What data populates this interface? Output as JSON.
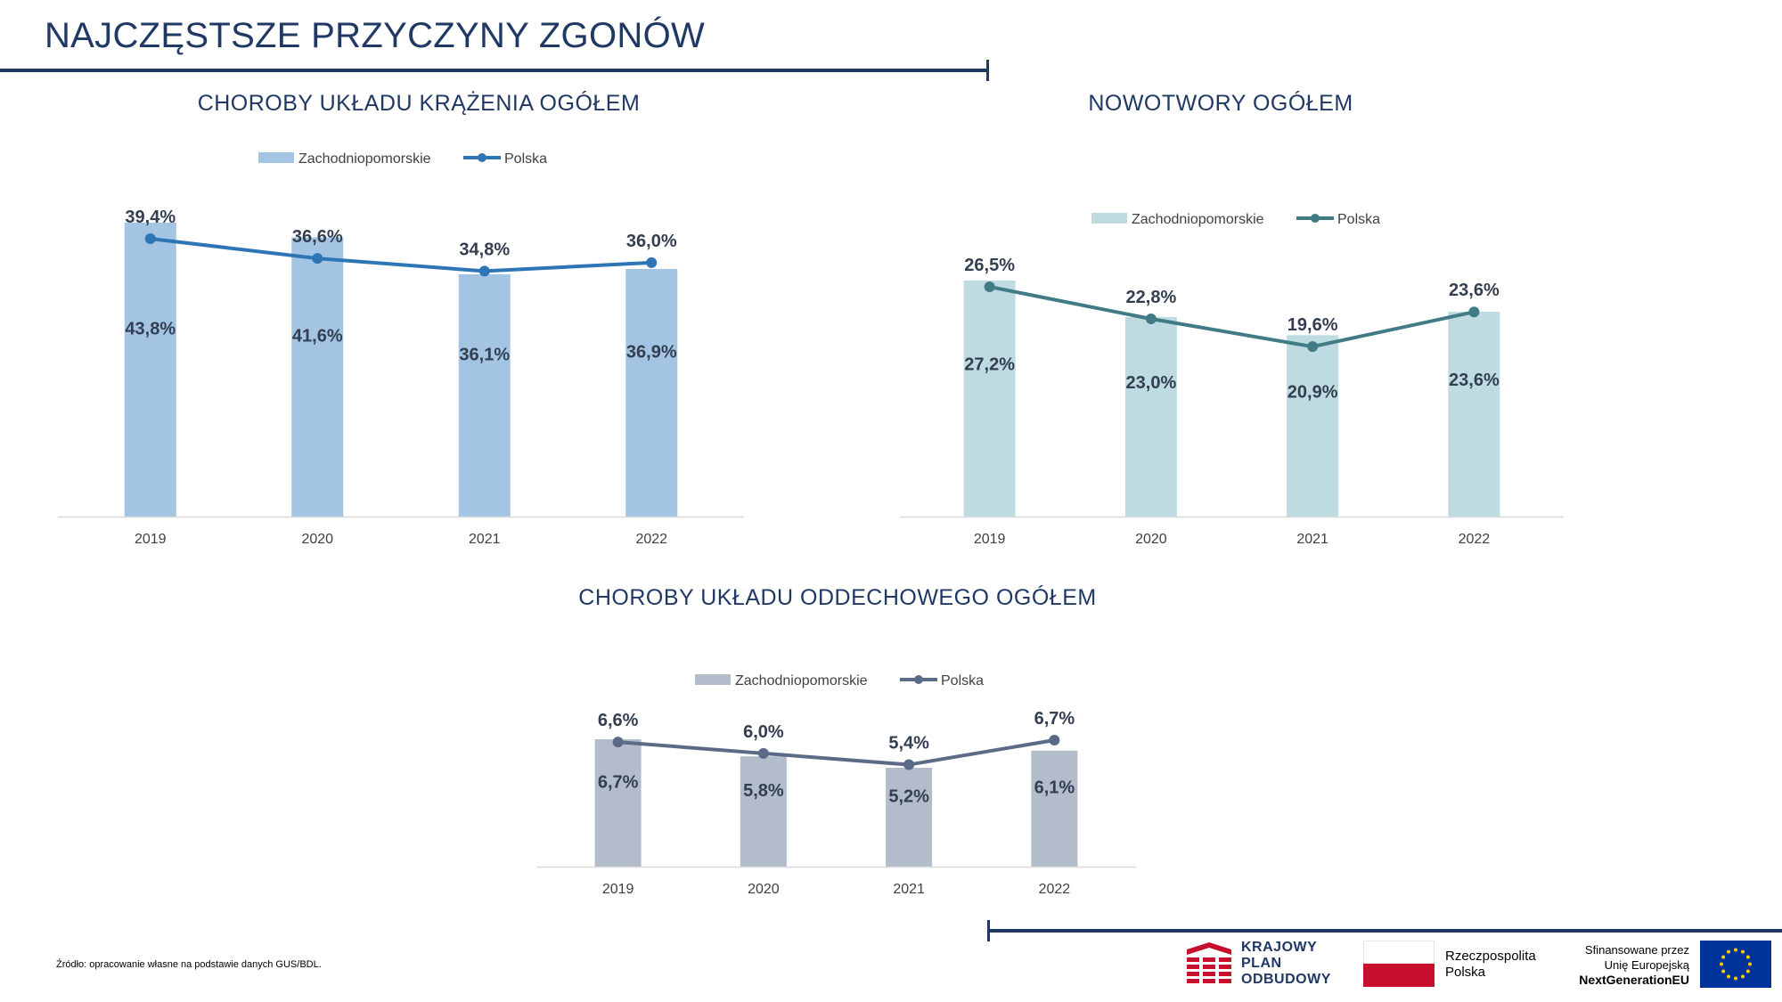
{
  "page": {
    "title": "NAJCZĘSTSZE PRZYCZYNY ZGONÓW",
    "source": "Źródło: opracowanie własne na podstawie danych GUS/BDL."
  },
  "logos": {
    "kpo": [
      "KRAJOWY",
      "PLAN",
      "ODBUDOWY"
    ],
    "rp": [
      "Rzeczpospolita",
      "Polska"
    ],
    "eu": [
      "Sfinansowane przez",
      "Unię Europejską",
      "NextGenerationEU"
    ]
  },
  "colors": {
    "title": "#1f3864",
    "rule": "#1f3864",
    "chart1_bar": "#a3c4e3",
    "chart1_line": "#2e75b6",
    "chart2_bar": "#bddbe0",
    "chart2_line": "#417b85",
    "chart3_bar": "#b3bccb",
    "chart3_line": "#5b6b87",
    "label": "#333f50",
    "axis_label": "#404040"
  },
  "chart_data": [
    {
      "id": "circulatory",
      "type": "bar",
      "title": "CHOROBY UKŁADU KRĄŻENIA OGÓŁEM",
      "categories": [
        "2019",
        "2020",
        "2021",
        "2022"
      ],
      "series": [
        {
          "name": "Zachodniopomorskie",
          "type": "bar",
          "values": [
            43.8,
            41.6,
            36.1,
            36.9
          ],
          "labels": [
            "43,8%",
            "41,6%",
            "36,1%",
            "36,9%"
          ]
        },
        {
          "name": "Polska",
          "type": "line",
          "values": [
            39.4,
            36.6,
            34.8,
            36.0
          ],
          "labels": [
            "39,4%",
            "36,6%",
            "34,8%",
            "36,0%"
          ]
        }
      ],
      "legend": "top"
    },
    {
      "id": "cancer",
      "type": "bar",
      "title": "NOWOTWORY OGÓŁEM",
      "categories": [
        "2019",
        "2020",
        "2021",
        "2022"
      ],
      "series": [
        {
          "name": "Zachodniopomorskie",
          "type": "bar",
          "values": [
            27.2,
            23.0,
            20.9,
            23.6
          ],
          "labels": [
            "27,2%",
            "23,0%",
            "20,9%",
            "23,6%"
          ]
        },
        {
          "name": "Polska",
          "type": "line",
          "values": [
            26.5,
            22.8,
            19.6,
            23.6
          ],
          "labels": [
            "26,5%",
            "22,8%",
            "19,6%",
            "23,6%"
          ]
        }
      ],
      "legend": "top"
    },
    {
      "id": "respiratory",
      "type": "bar",
      "title": "CHOROBY UKŁADU ODDECHOWEGO OGÓŁEM",
      "categories": [
        "2019",
        "2020",
        "2021",
        "2022"
      ],
      "series": [
        {
          "name": "Zachodniopomorskie",
          "type": "bar",
          "values": [
            6.7,
            5.8,
            5.2,
            6.1
          ],
          "labels": [
            "6,7%",
            "5,8%",
            "5,2%",
            "6,1%"
          ]
        },
        {
          "name": "Polska",
          "type": "line",
          "values": [
            6.6,
            6.0,
            5.4,
            6.7
          ],
          "labels": [
            "6,6%",
            "6,0%",
            "5,4%",
            "6,7%"
          ]
        }
      ],
      "legend": "top"
    }
  ]
}
